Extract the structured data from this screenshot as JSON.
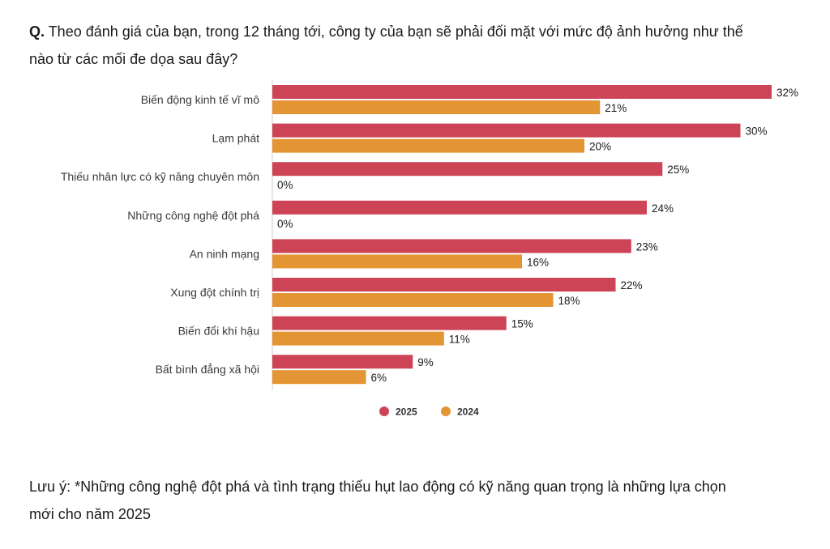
{
  "question": {
    "prefix": "Q.",
    "text": " Theo đánh giá của bạn, trong 12 tháng tới, công ty của bạn sẽ phải đối mặt với mức độ ảnh hưởng như thế nào từ các mối đe dọa sau đây?"
  },
  "colors": {
    "s2025": "#cc4455",
    "s2024": "#e39433"
  },
  "chart_data": {
    "type": "bar",
    "orientation": "horizontal",
    "categories": [
      "Biến động kinh tế vĩ mô",
      "Lạm phát",
      "Thiếu nhân lực có kỹ năng chuyên môn",
      "Những công nghệ đột phá",
      "An ninh mạng",
      "Xung đột chính trị",
      "Biến đổi khí hậu",
      "Bất bình đẳng xã hội"
    ],
    "series": [
      {
        "name": "2025",
        "color": "#cc4455",
        "values": [
          32,
          30,
          25,
          24,
          23,
          22,
          15,
          9
        ]
      },
      {
        "name": "2024",
        "color": "#e39433",
        "values": [
          21,
          20,
          0,
          0,
          16,
          18,
          11,
          6
        ]
      }
    ],
    "value_suffix": "%",
    "xlim": [
      0,
      32
    ],
    "grid": false,
    "legend": "bottom-center"
  },
  "note": {
    "text": "Lưu ý: *Những công nghệ đột phá và tình trạng thiếu hụt lao động có kỹ năng quan trọng là những lựa chọn mới cho năm 2025"
  }
}
